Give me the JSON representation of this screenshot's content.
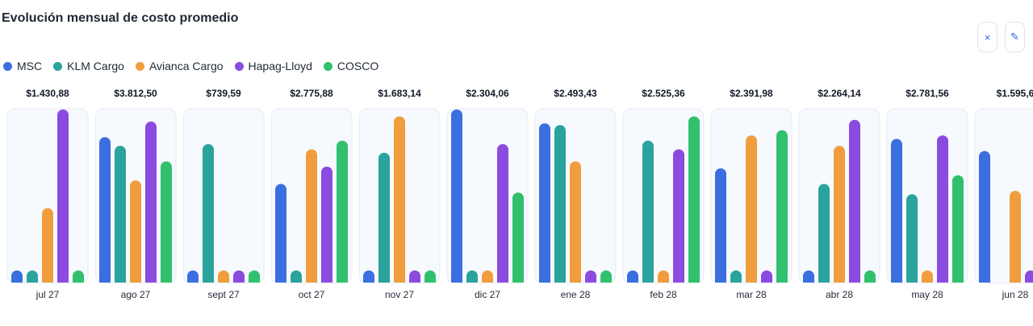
{
  "header": {
    "title": "Evolución mensual de costo promedio"
  },
  "toolbar": {
    "close_label": "×",
    "edit_label": "✎"
  },
  "colors": {
    "MSC": "#3b6fe0",
    "KLM Cargo": "#2aa39d",
    "Avianca Cargo": "#f19d3e",
    "Hapag-Lloyd": "#8b4be0",
    "COSCO": "#31c06d"
  },
  "chart_data": {
    "type": "bar",
    "title": "Evolución mensual de costo promedio",
    "xlabel": "",
    "ylabel": "",
    "legend_position": "top-left",
    "grid": false,
    "categories": [
      "jul 27",
      "ago 27",
      "sept 27",
      "oct 27",
      "nov 27",
      "dic 27",
      "ene 28",
      "feb 28",
      "mar 28",
      "abr 28",
      "may 28",
      "jun 28"
    ],
    "totals": [
      "$1.430,88",
      "$3.812,50",
      "$739,59",
      "$2.775,88",
      "$1.683,14",
      "$2.304,06",
      "$2.493,43",
      "$2.525,36",
      "$2.391,98",
      "$2.264,14",
      "$2.781,56",
      "$1.595,6"
    ],
    "series": [
      {
        "name": "MSC",
        "values": [
          0.07,
          0.84,
          0.07,
          0.57,
          0.07,
          1.0,
          0.92,
          0.07,
          0.66,
          0.07,
          0.83,
          0.76
        ]
      },
      {
        "name": "KLM Cargo",
        "values": [
          0.07,
          0.79,
          0.8,
          0.07,
          0.75,
          0.07,
          0.91,
          0.82,
          0.07,
          0.57,
          0.51,
          null
        ]
      },
      {
        "name": "Avianca Cargo",
        "values": [
          0.43,
          0.59,
          0.07,
          0.77,
          0.96,
          0.07,
          0.7,
          0.07,
          0.85,
          0.79,
          0.07,
          0.53
        ]
      },
      {
        "name": "Hapag-Lloyd",
        "values": [
          1.0,
          0.93,
          0.07,
          0.67,
          0.07,
          0.8,
          0.07,
          0.77,
          0.07,
          0.94,
          0.85,
          0.07
        ]
      },
      {
        "name": "COSCO",
        "values": [
          0.07,
          0.7,
          0.07,
          0.82,
          0.07,
          0.52,
          0.07,
          0.96,
          0.88,
          0.07,
          0.62,
          null
        ]
      }
    ]
  }
}
